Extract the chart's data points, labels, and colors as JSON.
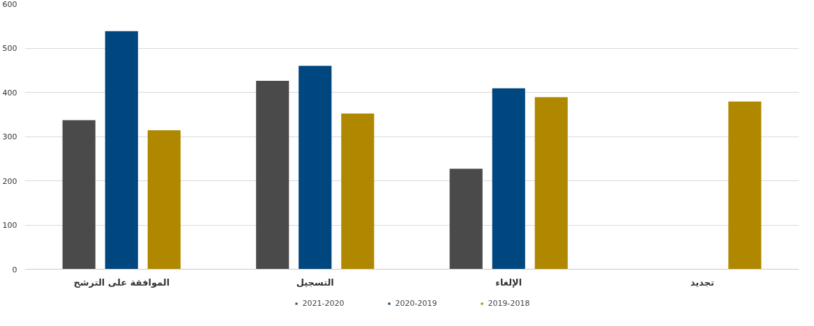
{
  "chart_data": {
    "type": "bar",
    "categories": [
      "الموافقة على الترشح",
      "التسجيل",
      "الإلغاء",
      "تجديد"
    ],
    "series": [
      {
        "name": "2021-2020",
        "color": "#4a4a4a",
        "values": [
          337,
          426,
          227,
          null
        ]
      },
      {
        "name": "2020-2019",
        "color": "#00467f",
        "values": [
          538,
          460,
          409,
          null
        ]
      },
      {
        "name": "2019-2018",
        "color": "#b08800",
        "values": [
          314,
          352,
          389,
          379
        ]
      }
    ],
    "ylim": [
      0,
      600
    ],
    "yticks": [
      0,
      100,
      200,
      300,
      400,
      500,
      600
    ],
    "grid": "y",
    "legend": "bottom"
  }
}
